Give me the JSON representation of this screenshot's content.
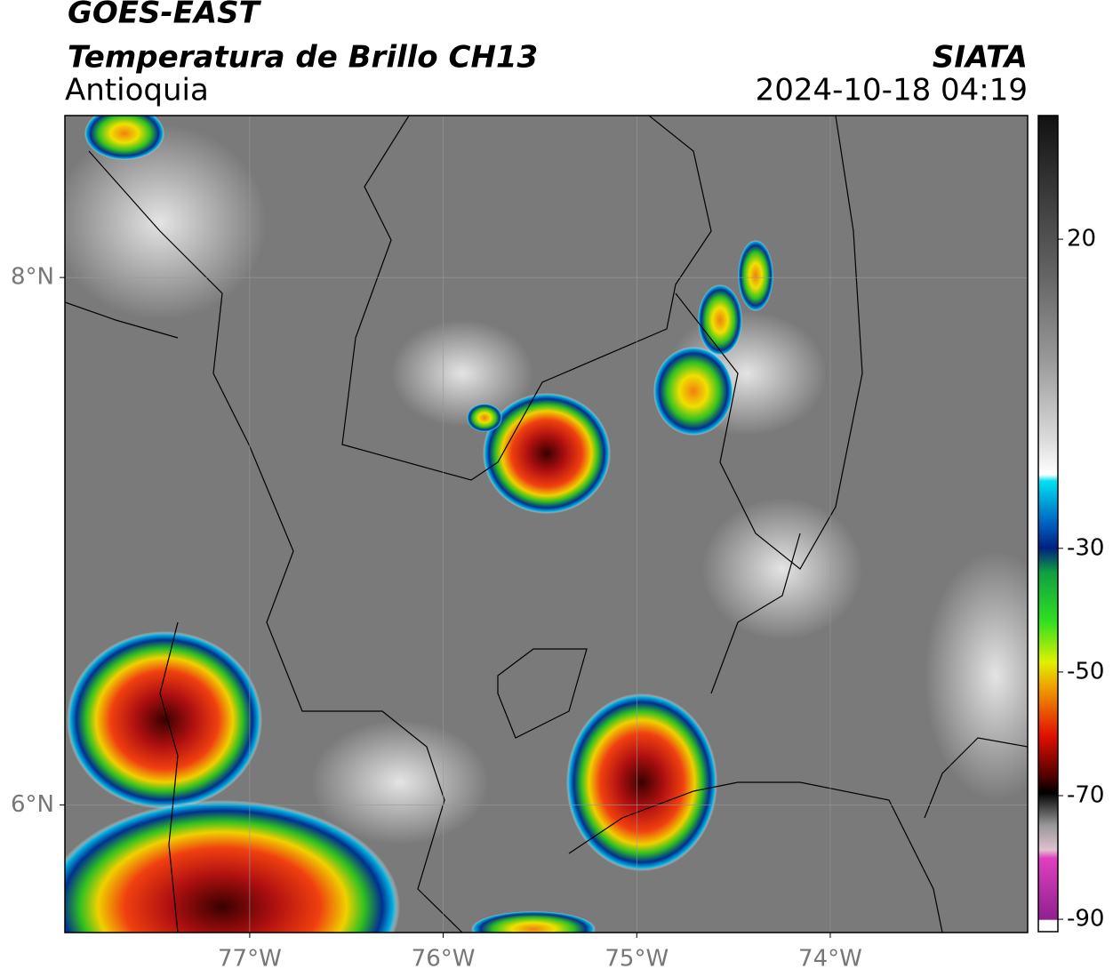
{
  "header": {
    "satellite": "GOES-EAST",
    "title": "Temperatura de Brillo CH13",
    "region": "Antioquia",
    "source": "SIATA",
    "datetime": "2024-10-18 04:19"
  },
  "map": {
    "xlim": [
      -77.955,
      -72.98
    ],
    "ylim": [
      5.516,
      8.614
    ],
    "xticks": [
      {
        "value": -77,
        "label": "77°W"
      },
      {
        "value": -76,
        "label": "76°W"
      },
      {
        "value": -75,
        "label": "75°W"
      },
      {
        "value": -74,
        "label": "74°W"
      }
    ],
    "yticks": [
      {
        "value": 8,
        "label": "8°N"
      },
      {
        "value": 6,
        "label": "6°N"
      }
    ]
  },
  "colorbar": {
    "lim": [
      -92,
      40
    ],
    "ticks": [
      20,
      -30,
      -50,
      -70,
      -90
    ]
  }
}
